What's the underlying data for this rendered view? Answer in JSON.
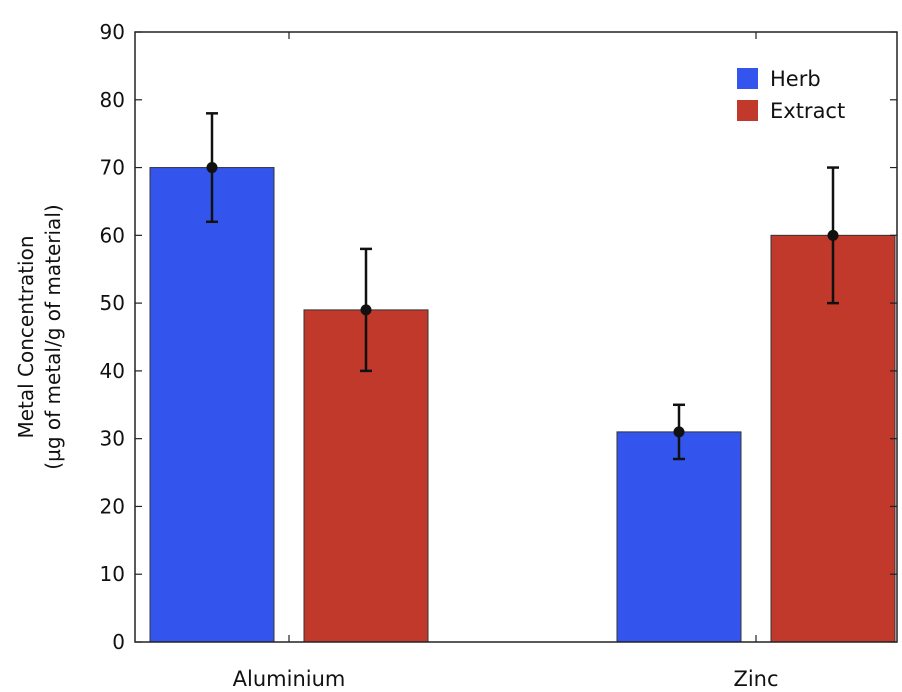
{
  "chart_data": {
    "type": "bar",
    "categories": [
      "Aluminium",
      "Zinc"
    ],
    "series": [
      {
        "name": "Herb",
        "color": "#3355ee",
        "values": [
          70,
          31
        ],
        "error": [
          8,
          4
        ]
      },
      {
        "name": "Extract",
        "color": "#c0392b",
        "values": [
          49,
          60
        ],
        "error": [
          9,
          10
        ]
      }
    ],
    "ylabel_line1": "Metal Concentration",
    "ylabel_line2": "(µg of metal/g of material)",
    "ylim": [
      0,
      90
    ],
    "yticks": [
      0,
      10,
      20,
      30,
      40,
      50,
      60,
      70,
      80,
      90
    ],
    "grid": false,
    "legend_position": "top-right"
  }
}
